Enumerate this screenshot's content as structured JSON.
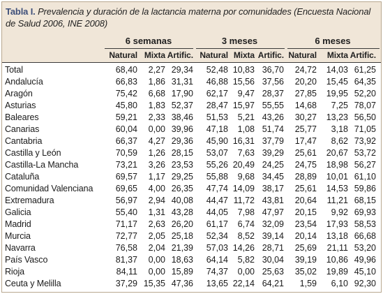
{
  "caption": {
    "lead": "Tabla I.",
    "title": "Prevalencia y duración de la lactancia materna por comunidades (Encuesta Nacional de Salud 2006, INE 2008)"
  },
  "groups": [
    "6 semanas",
    "3 meses",
    "6 meses"
  ],
  "subheaders": [
    "Natural",
    "Mixta",
    "Artific.",
    "Natural",
    "Mixta",
    "Artific.",
    "Natural",
    "Mixta",
    "Artific."
  ],
  "rows": [
    {
      "region": "Total",
      "values": [
        "68,40",
        "2,27",
        "29,34",
        "52,48",
        "10,83",
        "36,70",
        "24,72",
        "14,03",
        "61,25"
      ]
    },
    {
      "region": "Andalucía",
      "values": [
        "66,83",
        "1,86",
        "31,31",
        "46,88",
        "15,56",
        "37,56",
        "20,20",
        "15,45",
        "64,35"
      ]
    },
    {
      "region": "Aragón",
      "values": [
        "75,42",
        "6,68",
        "17,90",
        "62,17",
        "9,47",
        "28,37",
        "27,85",
        "19,95",
        "52,20"
      ]
    },
    {
      "region": "Asturias",
      "values": [
        "45,80",
        "1,83",
        "52,37",
        "28,47",
        "15,97",
        "55,55",
        "14,68",
        "7,25",
        "78,07"
      ]
    },
    {
      "region": "Baleares",
      "values": [
        "59,21",
        "2,33",
        "38,46",
        "51,53",
        "5,21",
        "43,26",
        "30,27",
        "13,23",
        "56,50"
      ]
    },
    {
      "region": "Canarias",
      "values": [
        "60,04",
        "0,00",
        "39,96",
        "47,18",
        "1,08",
        "51,74",
        "25,77",
        "3,18",
        "71,05"
      ]
    },
    {
      "region": "Cantabria",
      "values": [
        "66,37",
        "4,27",
        "29,36",
        "45,90",
        "16,31",
        "37,79",
        "17,47",
        "8,62",
        "73,92"
      ]
    },
    {
      "region": "Castilla y León",
      "values": [
        "70,59",
        "1,26",
        "28,15",
        "53,07",
        "7,63",
        "39,29",
        "25,61",
        "20,67",
        "53,72"
      ]
    },
    {
      "region": "Castilla-La Mancha",
      "values": [
        "73,21",
        "3,26",
        "23,53",
        "55,26",
        "20,49",
        "24,25",
        "24,75",
        "18,98",
        "56,27"
      ]
    },
    {
      "region": "Cataluña",
      "values": [
        "69,57",
        "1,17",
        "29,25",
        "55,88",
        "9,68",
        "34,45",
        "28,89",
        "10,01",
        "61,10"
      ]
    },
    {
      "region": "Comunidad Valenciana",
      "values": [
        "69,65",
        "4,00",
        "26,35",
        "47,74",
        "14,09",
        "38,17",
        "25,61",
        "14,53",
        "59,86"
      ]
    },
    {
      "region": "Extremadura",
      "values": [
        "56,97",
        "2,94",
        "40,08",
        "44,47",
        "11,72",
        "43,81",
        "20,64",
        "11,21",
        "68,15"
      ]
    },
    {
      "region": "Galicia",
      "values": [
        "55,40",
        "1,31",
        "43,28",
        "44,05",
        "7,98",
        "47,97",
        "20,15",
        "9,92",
        "69,93"
      ]
    },
    {
      "region": "Madrid",
      "values": [
        "71,17",
        "2,63",
        "26,20",
        "61,17",
        "6,74",
        "32,09",
        "23,54",
        "17,93",
        "58,53"
      ]
    },
    {
      "region": "Murcia",
      "values": [
        "72,77",
        "2,05",
        "25,18",
        "52,34",
        "8,52",
        "39,14",
        "20,14",
        "13,18",
        "66,68"
      ]
    },
    {
      "region": "Navarra",
      "values": [
        "76,58",
        "2,04",
        "21,39",
        "57,03",
        "14,26",
        "28,71",
        "25,69",
        "21,11",
        "53,20"
      ]
    },
    {
      "region": "País Vasco",
      "values": [
        "81,37",
        "0,00",
        "18,63",
        "64,14",
        "5,82",
        "30,04",
        "39,19",
        "10,86",
        "49,96"
      ]
    },
    {
      "region": "Rioja",
      "values": [
        "84,11",
        "0,00",
        "15,89",
        "74,37",
        "0,00",
        "25,63",
        "35,02",
        "19,89",
        "45,10"
      ]
    },
    {
      "region": "Ceuta y Melilla",
      "values": [
        "37,29",
        "15,35",
        "47,36",
        "13,65",
        "22,14",
        "64,21",
        "1,59",
        "6,10",
        "92,30"
      ]
    }
  ]
}
